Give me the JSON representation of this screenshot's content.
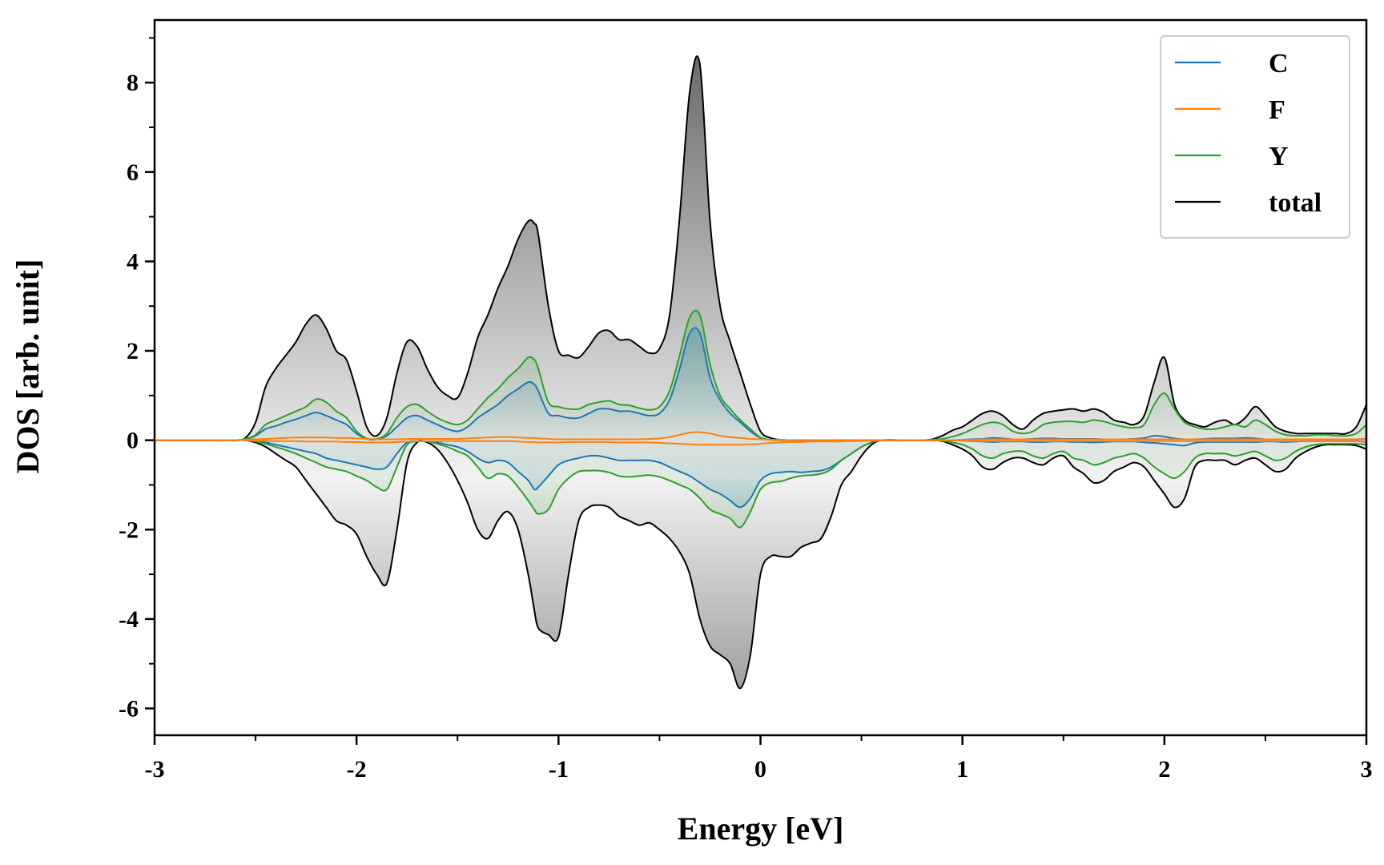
{
  "chart_data": {
    "type": "line",
    "xlabel": "Energy [eV]",
    "ylabel": "DOS [arb. unit]",
    "xlim": [
      -3,
      3
    ],
    "ylim": [
      -6.6,
      9.4
    ],
    "xticks": [
      -3,
      -2,
      -1,
      0,
      1,
      2,
      3
    ],
    "yticks": [
      -6,
      -4,
      -2,
      0,
      2,
      4,
      6,
      8
    ],
    "grid": false,
    "legend_position": "top-right",
    "x": [
      -3.0,
      -2.9,
      -2.8,
      -2.7,
      -2.6,
      -2.55,
      -2.5,
      -2.45,
      -2.4,
      -2.35,
      -2.3,
      -2.25,
      -2.2,
      -2.15,
      -2.1,
      -2.05,
      -2.0,
      -1.95,
      -1.9,
      -1.85,
      -1.8,
      -1.75,
      -1.7,
      -1.65,
      -1.6,
      -1.55,
      -1.5,
      -1.45,
      -1.4,
      -1.35,
      -1.3,
      -1.25,
      -1.2,
      -1.15,
      -1.12,
      -1.1,
      -1.05,
      -1.0,
      -0.95,
      -0.9,
      -0.85,
      -0.8,
      -0.75,
      -0.7,
      -0.65,
      -0.6,
      -0.55,
      -0.5,
      -0.45,
      -0.4,
      -0.35,
      -0.3,
      -0.25,
      -0.2,
      -0.15,
      -0.1,
      -0.05,
      0.0,
      0.05,
      0.1,
      0.15,
      0.2,
      0.25,
      0.3,
      0.35,
      0.4,
      0.45,
      0.5,
      0.55,
      0.6,
      0.7,
      0.8,
      0.85,
      0.9,
      0.95,
      1.0,
      1.05,
      1.1,
      1.15,
      1.2,
      1.25,
      1.3,
      1.35,
      1.4,
      1.45,
      1.5,
      1.55,
      1.6,
      1.65,
      1.7,
      1.75,
      1.8,
      1.85,
      1.9,
      1.95,
      2.0,
      2.05,
      2.1,
      2.15,
      2.2,
      2.25,
      2.3,
      2.35,
      2.4,
      2.45,
      2.5,
      2.55,
      2.6,
      2.65,
      2.7,
      2.75,
      2.8,
      2.85,
      2.9,
      2.95,
      3.0
    ],
    "series": [
      {
        "name": "C",
        "color": "#1f77b4",
        "up": [
          0,
          0,
          0,
          0,
          0,
          0.02,
          0.1,
          0.25,
          0.32,
          0.4,
          0.47,
          0.55,
          0.62,
          0.55,
          0.45,
          0.35,
          0.15,
          0.03,
          0.02,
          0.1,
          0.3,
          0.5,
          0.55,
          0.45,
          0.35,
          0.25,
          0.2,
          0.3,
          0.5,
          0.65,
          0.8,
          1.0,
          1.15,
          1.3,
          1.25,
          1.1,
          0.6,
          0.55,
          0.5,
          0.5,
          0.6,
          0.7,
          0.7,
          0.65,
          0.65,
          0.6,
          0.55,
          0.6,
          0.9,
          1.6,
          2.4,
          2.4,
          1.4,
          0.9,
          0.6,
          0.4,
          0.2,
          0.05,
          0.01,
          0,
          0,
          0,
          0,
          0,
          0,
          0,
          0,
          0,
          0,
          0,
          0,
          0,
          0,
          0,
          0,
          0.01,
          0.02,
          0.03,
          0.05,
          0.04,
          0.02,
          0.02,
          0.03,
          0.04,
          0.04,
          0.03,
          0.03,
          0.03,
          0.03,
          0.02,
          0.02,
          0.02,
          0.03,
          0.05,
          0.1,
          0.08,
          0.04,
          0.02,
          0.02,
          0.03,
          0.04,
          0.04,
          0.04,
          0.05,
          0.04,
          0.02,
          0.02,
          0.02,
          0.02,
          0.02,
          0.02,
          0.02,
          0.02,
          0.02,
          0.02,
          0.03
        ],
        "down": [
          0,
          0,
          0,
          0,
          0,
          0,
          -0.02,
          -0.05,
          -0.1,
          -0.15,
          -0.2,
          -0.25,
          -0.3,
          -0.4,
          -0.45,
          -0.5,
          -0.55,
          -0.6,
          -0.65,
          -0.6,
          -0.3,
          -0.05,
          -0.02,
          -0.02,
          -0.05,
          -0.1,
          -0.15,
          -0.25,
          -0.4,
          -0.5,
          -0.45,
          -0.5,
          -0.7,
          -0.9,
          -1.1,
          -1.05,
          -0.8,
          -0.55,
          -0.45,
          -0.4,
          -0.35,
          -0.35,
          -0.4,
          -0.45,
          -0.45,
          -0.45,
          -0.45,
          -0.5,
          -0.6,
          -0.7,
          -0.8,
          -0.95,
          -1.1,
          -1.2,
          -1.35,
          -1.5,
          -1.3,
          -0.9,
          -0.75,
          -0.72,
          -0.7,
          -0.72,
          -0.7,
          -0.68,
          -0.6,
          -0.45,
          -0.3,
          -0.15,
          -0.05,
          0,
          0,
          0,
          0,
          0,
          0,
          -0.01,
          -0.02,
          -0.03,
          -0.04,
          -0.03,
          -0.03,
          -0.03,
          -0.04,
          -0.04,
          -0.03,
          -0.03,
          -0.04,
          -0.04,
          -0.05,
          -0.04,
          -0.03,
          -0.03,
          -0.03,
          -0.05,
          -0.06,
          -0.08,
          -0.1,
          -0.12,
          -0.06,
          -0.04,
          -0.04,
          -0.04,
          -0.04,
          -0.04,
          -0.04,
          -0.03,
          -0.03,
          -0.04,
          -0.03,
          -0.02,
          -0.02,
          -0.02,
          -0.02,
          -0.02,
          -0.02,
          -0.04
        ]
      },
      {
        "name": "F",
        "color": "#ff7f0e",
        "up": [
          0,
          0,
          0,
          0,
          0,
          0.01,
          0.02,
          0.03,
          0.04,
          0.05,
          0.06,
          0.06,
          0.06,
          0.06,
          0.05,
          0.05,
          0.04,
          0.03,
          0.02,
          0.02,
          0.02,
          0.03,
          0.03,
          0.03,
          0.03,
          0.03,
          0.03,
          0.04,
          0.05,
          0.06,
          0.07,
          0.07,
          0.06,
          0.05,
          0.05,
          0.04,
          0.03,
          0.02,
          0.02,
          0.02,
          0.02,
          0.02,
          0.02,
          0.02,
          0.02,
          0.02,
          0.03,
          0.04,
          0.07,
          0.12,
          0.17,
          0.18,
          0.15,
          0.1,
          0.07,
          0.05,
          0.03,
          0.02,
          0.01,
          0.01,
          0,
          0,
          0,
          0,
          0,
          0,
          0,
          0,
          0,
          0,
          0,
          0,
          0,
          0,
          0,
          0.01,
          0.01,
          0.02,
          0.02,
          0.02,
          0.02,
          0.02,
          0.02,
          0.02,
          0.02,
          0.02,
          0.02,
          0.02,
          0.02,
          0.02,
          0.02,
          0.02,
          0.02,
          0.02,
          0.02,
          0.02,
          0.02,
          0.02,
          0.02,
          0.02,
          0.02,
          0.02,
          0.02,
          0.02,
          0.02,
          0.02,
          0.02,
          0.02,
          0.02,
          0.02,
          0.02,
          0.02,
          0.02,
          0.02,
          0.02,
          0.03
        ],
        "down": [
          0,
          0,
          0,
          0,
          0,
          0,
          -0.01,
          -0.01,
          -0.02,
          -0.02,
          -0.02,
          -0.03,
          -0.03,
          -0.03,
          -0.03,
          -0.04,
          -0.04,
          -0.05,
          -0.05,
          -0.05,
          -0.04,
          -0.03,
          -0.02,
          -0.02,
          -0.02,
          -0.02,
          -0.02,
          -0.02,
          -0.02,
          -0.02,
          -0.02,
          -0.02,
          -0.03,
          -0.04,
          -0.04,
          -0.05,
          -0.05,
          -0.05,
          -0.04,
          -0.04,
          -0.04,
          -0.04,
          -0.04,
          -0.05,
          -0.05,
          -0.05,
          -0.05,
          -0.06,
          -0.07,
          -0.08,
          -0.09,
          -0.1,
          -0.1,
          -0.1,
          -0.1,
          -0.1,
          -0.09,
          -0.08,
          -0.06,
          -0.05,
          -0.04,
          -0.04,
          -0.03,
          -0.03,
          -0.03,
          -0.03,
          -0.02,
          -0.02,
          -0.01,
          0,
          0,
          0,
          0,
          0,
          0,
          -0.01,
          -0.01,
          -0.02,
          -0.02,
          -0.02,
          -0.02,
          -0.02,
          -0.02,
          -0.02,
          -0.02,
          -0.02,
          -0.02,
          -0.02,
          -0.02,
          -0.02,
          -0.02,
          -0.02,
          -0.02,
          -0.02,
          -0.02,
          -0.02,
          -0.02,
          -0.02,
          -0.02,
          -0.02,
          -0.02,
          -0.02,
          -0.02,
          -0.02,
          -0.02,
          -0.02,
          -0.02,
          -0.02,
          -0.02,
          -0.02,
          -0.02,
          -0.02,
          -0.02,
          -0.02,
          -0.02,
          -0.03
        ]
      },
      {
        "name": "Y",
        "color": "#2ca02c",
        "up": [
          0,
          0,
          0,
          0,
          0,
          0.03,
          0.12,
          0.35,
          0.45,
          0.55,
          0.65,
          0.75,
          0.92,
          0.85,
          0.65,
          0.5,
          0.2,
          0.04,
          0.03,
          0.15,
          0.5,
          0.75,
          0.8,
          0.65,
          0.5,
          0.4,
          0.35,
          0.45,
          0.7,
          0.95,
          1.15,
          1.4,
          1.6,
          1.85,
          1.8,
          1.6,
          0.85,
          0.75,
          0.7,
          0.7,
          0.8,
          0.85,
          0.88,
          0.8,
          0.78,
          0.72,
          0.68,
          0.75,
          1.1,
          1.9,
          2.75,
          2.8,
          1.7,
          1.0,
          0.7,
          0.45,
          0.25,
          0.06,
          0.01,
          0,
          0,
          0,
          0,
          0,
          0,
          0,
          0,
          0,
          0,
          0,
          0,
          0,
          0.01,
          0.03,
          0.08,
          0.15,
          0.25,
          0.35,
          0.4,
          0.35,
          0.2,
          0.15,
          0.2,
          0.35,
          0.4,
          0.42,
          0.42,
          0.4,
          0.45,
          0.42,
          0.35,
          0.3,
          0.28,
          0.35,
          0.8,
          1.05,
          0.7,
          0.4,
          0.3,
          0.25,
          0.25,
          0.3,
          0.35,
          0.3,
          0.45,
          0.35,
          0.2,
          0.12,
          0.1,
          0.1,
          0.12,
          0.12,
          0.1,
          0.1,
          0.15,
          0.35
        ],
        "down": [
          0,
          0,
          0,
          0,
          0,
          0,
          -0.03,
          -0.08,
          -0.15,
          -0.22,
          -0.3,
          -0.4,
          -0.5,
          -0.6,
          -0.65,
          -0.7,
          -0.8,
          -0.9,
          -1.05,
          -1.1,
          -0.6,
          -0.1,
          -0.03,
          -0.03,
          -0.08,
          -0.15,
          -0.25,
          -0.35,
          -0.6,
          -0.85,
          -0.75,
          -0.8,
          -1.05,
          -1.35,
          -1.55,
          -1.65,
          -1.55,
          -1.1,
          -0.85,
          -0.7,
          -0.68,
          -0.68,
          -0.72,
          -0.8,
          -0.82,
          -0.8,
          -0.78,
          -0.82,
          -0.9,
          -1.0,
          -1.1,
          -1.3,
          -1.55,
          -1.65,
          -1.75,
          -1.95,
          -1.6,
          -1.1,
          -0.95,
          -0.92,
          -0.85,
          -0.8,
          -0.78,
          -0.75,
          -0.65,
          -0.45,
          -0.3,
          -0.15,
          -0.05,
          0,
          0,
          0,
          0,
          -0.01,
          -0.05,
          -0.1,
          -0.2,
          -0.35,
          -0.4,
          -0.3,
          -0.25,
          -0.25,
          -0.35,
          -0.4,
          -0.3,
          -0.25,
          -0.4,
          -0.45,
          -0.55,
          -0.5,
          -0.4,
          -0.35,
          -0.3,
          -0.4,
          -0.6,
          -0.75,
          -0.85,
          -0.7,
          -0.4,
          -0.3,
          -0.3,
          -0.3,
          -0.35,
          -0.3,
          -0.25,
          -0.35,
          -0.45,
          -0.4,
          -0.25,
          -0.15,
          -0.1,
          -0.08,
          -0.08,
          -0.08,
          -0.08,
          -0.1
        ]
      },
      {
        "name": "total",
        "color": "#000000",
        "up": [
          0,
          0,
          0,
          0,
          0,
          0.05,
          0.4,
          1.2,
          1.6,
          1.9,
          2.2,
          2.6,
          2.8,
          2.5,
          2.0,
          1.8,
          1.1,
          0.3,
          0.1,
          0.5,
          1.5,
          2.2,
          2.1,
          1.6,
          1.2,
          1.0,
          0.95,
          1.5,
          2.3,
          2.8,
          3.4,
          3.9,
          4.5,
          4.9,
          4.85,
          4.6,
          3.0,
          2.0,
          1.9,
          1.85,
          2.1,
          2.4,
          2.45,
          2.25,
          2.25,
          2.1,
          1.95,
          2.05,
          2.8,
          5.0,
          7.8,
          8.4,
          4.9,
          3.0,
          2.2,
          1.5,
          0.8,
          0.2,
          0.05,
          0.01,
          0,
          0,
          0,
          0,
          0,
          0,
          0,
          0,
          0,
          0,
          0,
          0,
          0.02,
          0.1,
          0.22,
          0.3,
          0.45,
          0.6,
          0.65,
          0.55,
          0.35,
          0.25,
          0.45,
          0.6,
          0.65,
          0.68,
          0.7,
          0.65,
          0.7,
          0.62,
          0.45,
          0.4,
          0.35,
          0.55,
          1.3,
          1.85,
          0.8,
          0.45,
          0.35,
          0.3,
          0.4,
          0.45,
          0.35,
          0.5,
          0.75,
          0.55,
          0.3,
          0.2,
          0.15,
          0.15,
          0.15,
          0.15,
          0.15,
          0.15,
          0.3,
          0.8
        ],
        "down": [
          0,
          0,
          0,
          0,
          0,
          0,
          -0.05,
          -0.15,
          -0.3,
          -0.45,
          -0.6,
          -0.9,
          -1.2,
          -1.5,
          -1.8,
          -1.9,
          -2.1,
          -2.6,
          -3.0,
          -3.2,
          -2.0,
          -0.5,
          -0.05,
          -0.05,
          -0.2,
          -0.5,
          -0.9,
          -1.4,
          -2.0,
          -2.2,
          -1.8,
          -1.6,
          -2.0,
          -3.0,
          -3.8,
          -4.2,
          -4.35,
          -4.4,
          -3.0,
          -1.8,
          -1.5,
          -1.45,
          -1.5,
          -1.7,
          -1.8,
          -1.9,
          -1.85,
          -2.0,
          -2.2,
          -2.5,
          -3.0,
          -4.0,
          -4.6,
          -4.8,
          -5.0,
          -5.55,
          -4.8,
          -3.0,
          -2.6,
          -2.6,
          -2.6,
          -2.4,
          -2.3,
          -2.2,
          -1.7,
          -1.0,
          -0.7,
          -0.35,
          -0.1,
          0,
          0,
          0,
          0,
          -0.02,
          -0.1,
          -0.2,
          -0.35,
          -0.6,
          -0.65,
          -0.5,
          -0.4,
          -0.4,
          -0.5,
          -0.55,
          -0.4,
          -0.35,
          -0.6,
          -0.75,
          -0.95,
          -0.9,
          -0.7,
          -0.6,
          -0.5,
          -0.6,
          -0.9,
          -1.2,
          -1.5,
          -1.3,
          -0.6,
          -0.45,
          -0.45,
          -0.45,
          -0.55,
          -0.45,
          -0.4,
          -0.55,
          -0.7,
          -0.65,
          -0.4,
          -0.25,
          -0.15,
          -0.1,
          -0.1,
          -0.1,
          -0.12,
          -0.2
        ]
      }
    ]
  }
}
